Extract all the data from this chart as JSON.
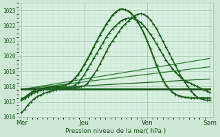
{
  "bg_color": "#cce8d4",
  "plot_bg_color": "#d8f0e0",
  "grid_color_minor": "#bcd8c4",
  "grid_color_major": "#a8ccb4",
  "ylim": [
    1016,
    1023.5
  ],
  "yticks": [
    1016,
    1017,
    1018,
    1019,
    1020,
    1021,
    1022,
    1023
  ],
  "xlabel": "Pression niveau de la mer( hPa )",
  "day_labels": [
    "Mer",
    "Jeu",
    "Ven",
    "Sam"
  ],
  "day_positions": [
    0,
    1,
    2,
    3
  ],
  "lines": [
    {
      "x": [
        0.0,
        0.05,
        0.1,
        0.15,
        0.2,
        0.25,
        0.3,
        0.35,
        0.4,
        0.45,
        0.5,
        0.55,
        0.6,
        0.65,
        0.7,
        0.75,
        0.8,
        0.85,
        0.9,
        0.95,
        1.0,
        1.05,
        1.1,
        1.15,
        1.2,
        1.25,
        1.3,
        1.35,
        1.4,
        1.45,
        1.5,
        1.55,
        1.6,
        1.65,
        1.7,
        1.75,
        1.8,
        1.85,
        1.9,
        1.95,
        2.0,
        2.05,
        2.1,
        2.15,
        2.2,
        2.25,
        2.3,
        2.35,
        2.4,
        2.45,
        2.5,
        2.55,
        2.6,
        2.65,
        2.7,
        2.75,
        2.8,
        2.85,
        2.9,
        2.95,
        3.0
      ],
      "y": [
        1016.3,
        1016.5,
        1016.8,
        1017.0,
        1017.2,
        1017.35,
        1017.45,
        1017.55,
        1017.62,
        1017.68,
        1017.73,
        1017.78,
        1017.82,
        1017.85,
        1017.88,
        1017.9,
        1017.92,
        1017.94,
        1017.97,
        1018.0,
        1018.05,
        1018.2,
        1018.5,
        1018.8,
        1019.1,
        1019.5,
        1019.9,
        1020.3,
        1020.7,
        1021.0,
        1021.3,
        1021.6,
        1021.9,
        1022.1,
        1022.3,
        1022.5,
        1022.65,
        1022.75,
        1022.8,
        1022.75,
        1022.6,
        1022.4,
        1022.1,
        1021.8,
        1021.4,
        1021.0,
        1020.6,
        1020.2,
        1019.8,
        1019.4,
        1019.0,
        1018.6,
        1018.3,
        1018.0,
        1017.7,
        1017.5,
        1017.3,
        1017.2,
        1017.15,
        1017.1,
        1017.1
      ],
      "color": "#1a6020",
      "lw": 1.2,
      "marker": true
    },
    {
      "x": [
        0.0,
        0.05,
        0.1,
        0.15,
        0.2,
        0.25,
        0.3,
        0.35,
        0.4,
        0.45,
        0.5,
        0.55,
        0.6,
        0.65,
        0.7,
        0.75,
        0.8,
        0.85,
        0.9,
        0.95,
        1.0,
        1.05,
        1.1,
        1.15,
        1.2,
        1.25,
        1.3,
        1.35,
        1.4,
        1.45,
        1.5,
        1.55,
        1.6,
        1.65,
        1.7,
        1.75,
        1.8,
        1.85,
        1.9,
        1.95,
        2.0,
        2.05,
        2.1,
        2.15,
        2.2,
        2.25,
        2.3,
        2.35,
        2.4,
        2.45,
        2.5,
        2.55,
        2.6,
        2.65,
        2.7,
        2.75,
        2.8,
        2.85,
        2.9,
        2.95,
        3.0
      ],
      "y": [
        1017.1,
        1017.2,
        1017.35,
        1017.5,
        1017.6,
        1017.68,
        1017.75,
        1017.8,
        1017.82,
        1017.84,
        1017.86,
        1017.88,
        1017.9,
        1017.92,
        1017.95,
        1017.97,
        1018.0,
        1018.1,
        1018.25,
        1018.5,
        1018.8,
        1019.15,
        1019.5,
        1019.85,
        1020.2,
        1020.55,
        1020.9,
        1021.25,
        1021.55,
        1021.8,
        1022.0,
        1022.2,
        1022.35,
        1022.45,
        1022.5,
        1022.5,
        1022.45,
        1022.35,
        1022.2,
        1022.0,
        1021.75,
        1021.45,
        1021.15,
        1020.8,
        1020.45,
        1020.1,
        1019.75,
        1019.45,
        1019.2,
        1018.95,
        1018.75,
        1018.55,
        1018.4,
        1018.3,
        1018.2,
        1018.1,
        1018.0,
        1017.9,
        1017.8,
        1017.7,
        1017.6
      ],
      "color": "#1a6020",
      "lw": 1.2,
      "marker": true
    },
    {
      "x": [
        0.0,
        0.05,
        0.1,
        0.15,
        0.2,
        0.25,
        0.3,
        0.35,
        0.4,
        0.45,
        0.5,
        0.55,
        0.6,
        0.65,
        0.7,
        0.75,
        0.8,
        0.85,
        0.9,
        0.95,
        1.0,
        1.05,
        1.1,
        1.15,
        1.2,
        1.25,
        1.3,
        1.35,
        1.4,
        1.45,
        1.5,
        1.55,
        1.6,
        1.65,
        1.7,
        1.75,
        1.8,
        1.85,
        1.9,
        1.95,
        2.0,
        2.05,
        2.1,
        2.15,
        2.2,
        2.25,
        2.3,
        2.35,
        2.4,
        2.45,
        2.5,
        2.55,
        2.6,
        2.65,
        2.7,
        2.75,
        2.8,
        2.85,
        2.9,
        2.95,
        3.0
      ],
      "y": [
        1017.2,
        1017.3,
        1017.45,
        1017.6,
        1017.72,
        1017.8,
        1017.86,
        1017.9,
        1017.93,
        1017.96,
        1017.98,
        1018.0,
        1018.02,
        1018.05,
        1018.1,
        1018.2,
        1018.35,
        1018.55,
        1018.8,
        1019.1,
        1019.45,
        1019.8,
        1020.2,
        1020.6,
        1021.0,
        1021.4,
        1021.75,
        1022.1,
        1022.4,
        1022.7,
        1022.9,
        1023.05,
        1023.1,
        1023.05,
        1022.95,
        1022.8,
        1022.55,
        1022.25,
        1021.9,
        1021.5,
        1021.0,
        1020.5,
        1019.95,
        1019.4,
        1018.9,
        1018.45,
        1018.1,
        1017.85,
        1017.65,
        1017.5,
        1017.4,
        1017.35,
        1017.3,
        1017.28,
        1017.26,
        1017.25,
        1017.25,
        1017.25,
        1017.25,
        1017.25,
        1017.25
      ],
      "color": "#1a5c18",
      "lw": 1.5,
      "marker": true
    },
    {
      "x": [
        0.0,
        3.0
      ],
      "y": [
        1017.82,
        1019.85
      ],
      "color": "#2a7a30",
      "lw": 0.9,
      "marker": false
    },
    {
      "x": [
        0.0,
        3.0
      ],
      "y": [
        1017.82,
        1019.3
      ],
      "color": "#2a7a30",
      "lw": 0.9,
      "marker": false
    },
    {
      "x": [
        0.0,
        3.0
      ],
      "y": [
        1017.82,
        1018.5
      ],
      "color": "#1a6020",
      "lw": 0.9,
      "marker": false
    },
    {
      "x": [
        0.0,
        3.0
      ],
      "y": [
        1017.82,
        1017.82
      ],
      "color": "#1a5018",
      "lw": 2.0,
      "marker": false
    },
    {
      "x": [
        0.5,
        2.0
      ],
      "y": [
        1017.9,
        1017.9
      ],
      "color": "#2a7030",
      "lw": 0.9,
      "marker": false
    }
  ]
}
